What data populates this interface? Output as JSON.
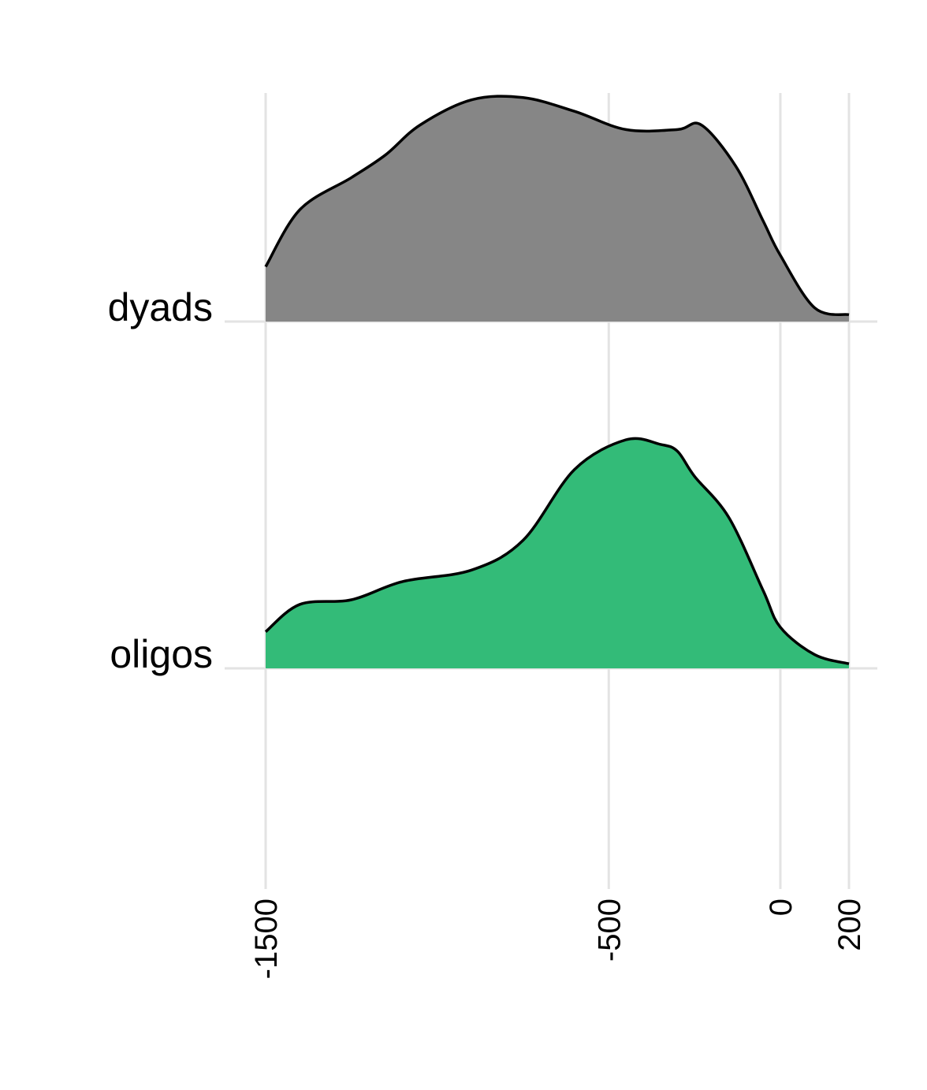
{
  "chart_data": {
    "type": "ridgeline",
    "title": "",
    "xlabel": "",
    "ylabel": "",
    "xlim": [
      -1500,
      200
    ],
    "xticks": [
      -1500,
      -500,
      0,
      200
    ],
    "xtick_labels": [
      "-1500",
      "-500",
      "0",
      "200"
    ],
    "grid": true,
    "legend": "none",
    "series": [
      {
        "name": "dyads",
        "color": "#868686",
        "x": [
          -1500,
          -1400,
          -1250,
          -1150,
          -1050,
          -900,
          -750,
          -600,
          -450,
          -300,
          -230,
          -130,
          -50,
          0,
          100,
          200
        ],
        "density": [
          0.24,
          0.49,
          0.63,
          0.73,
          0.86,
          0.97,
          0.98,
          0.92,
          0.84,
          0.84,
          0.86,
          0.68,
          0.44,
          0.29,
          0.06,
          0.03
        ]
      },
      {
        "name": "oligos",
        "color": "#33bb78",
        "x": [
          -1500,
          -1400,
          -1250,
          -1100,
          -900,
          -750,
          -600,
          -450,
          -350,
          -300,
          -250,
          -150,
          -50,
          0,
          100,
          200
        ],
        "density": [
          0.16,
          0.28,
          0.3,
          0.38,
          0.43,
          0.56,
          0.87,
          1.0,
          0.98,
          0.95,
          0.84,
          0.66,
          0.34,
          0.18,
          0.06,
          0.02
        ]
      }
    ]
  }
}
